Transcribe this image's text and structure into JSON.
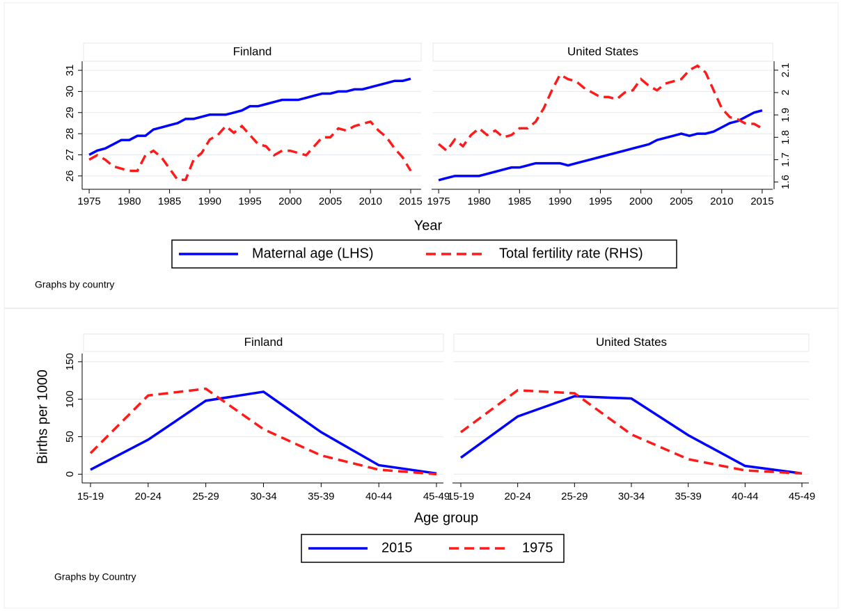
{
  "chart_data": [
    {
      "type": "line",
      "xlabel": "Year",
      "note": "Graphs by country",
      "panels": [
        "Finland",
        "United States"
      ],
      "x": [
        1975,
        1976,
        1977,
        1978,
        1979,
        1980,
        1981,
        1982,
        1983,
        1984,
        1985,
        1986,
        1987,
        1988,
        1989,
        1990,
        1991,
        1992,
        1993,
        1994,
        1995,
        1996,
        1997,
        1998,
        1999,
        2000,
        2001,
        2002,
        2003,
        2004,
        2005,
        2006,
        2007,
        2008,
        2009,
        2010,
        2011,
        2012,
        2013,
        2014,
        2015
      ],
      "xlim": [
        1974.3,
        2016.3
      ],
      "xticks": [
        1975,
        1980,
        1985,
        1990,
        1995,
        2000,
        2005,
        2010,
        2015
      ],
      "ylim": [
        25.5,
        31.43
      ],
      "yticks": [
        26,
        27,
        28,
        29,
        30,
        31
      ],
      "y2lim": [
        1.58,
        2.14
      ],
      "y2ticks": [
        1.6,
        1.7,
        1.8,
        1.9,
        2,
        2.1
      ],
      "grid": true,
      "series": [
        {
          "name": "Maternal age (LHS)",
          "color": "#0000ff",
          "dash": false,
          "values": [
            [
              27.0,
              27.2,
              27.3,
              27.5,
              27.7,
              27.7,
              27.9,
              27.9,
              28.2,
              28.3,
              28.4,
              28.5,
              28.7,
              28.7,
              28.8,
              28.9,
              28.9,
              28.9,
              29.0,
              29.1,
              29.3,
              29.3,
              29.4,
              29.5,
              29.6,
              29.6,
              29.6,
              29.7,
              29.8,
              29.9,
              29.9,
              30.0,
              30.0,
              30.1,
              30.1,
              30.2,
              30.3,
              30.4,
              30.5,
              30.5,
              30.6
            ],
            [
              25.8,
              25.9,
              26.0,
              26.0,
              26.0,
              26.0,
              26.1,
              26.2,
              26.3,
              26.4,
              26.4,
              26.5,
              26.6,
              26.6,
              26.6,
              26.6,
              26.5,
              26.6,
              26.7,
              26.8,
              26.9,
              27.0,
              27.1,
              27.2,
              27.3,
              27.4,
              27.5,
              27.7,
              27.8,
              27.9,
              28.0,
              27.9,
              28.0,
              28.0,
              28.1,
              28.3,
              28.5,
              28.6,
              28.8,
              29.0,
              29.1
            ]
          ]
        },
        {
          "name": "Total fertility rate (RHS)",
          "color": "#ff1a1a",
          "dash": true,
          "axis": "y2",
          "values": [
            [
              1.7,
              1.72,
              1.7,
              1.67,
              1.66,
              1.65,
              1.65,
              1.72,
              1.74,
              1.71,
              1.66,
              1.61,
              1.61,
              1.7,
              1.73,
              1.79,
              1.81,
              1.85,
              1.82,
              1.85,
              1.81,
              1.77,
              1.76,
              1.72,
              1.74,
              1.74,
              1.73,
              1.72,
              1.76,
              1.8,
              1.8,
              1.84,
              1.83,
              1.85,
              1.86,
              1.87,
              1.83,
              1.8,
              1.75,
              1.71,
              1.65
            ],
            [
              1.77,
              1.74,
              1.79,
              1.76,
              1.81,
              1.84,
              1.81,
              1.83,
              1.8,
              1.81,
              1.84,
              1.84,
              1.87,
              1.93,
              2.01,
              2.08,
              2.06,
              2.05,
              2.02,
              2.0,
              1.98,
              1.98,
              1.97,
              2.0,
              2.01,
              2.06,
              2.03,
              2.01,
              2.04,
              2.05,
              2.06,
              2.1,
              2.12,
              2.09,
              2.01,
              1.93,
              1.89,
              1.88,
              1.86,
              1.86,
              1.84
            ]
          ]
        }
      ]
    },
    {
      "type": "line",
      "xlabel": "Age group",
      "ylabel": "Births per 1000",
      "note": "Graphs by Country",
      "panels": [
        "Finland",
        "United States"
      ],
      "categories": [
        "15-19",
        "20-24",
        "25-29",
        "30-34",
        "35-39",
        "40-44",
        "45-49"
      ],
      "ylim": [
        -8,
        161
      ],
      "yticks": [
        0,
        50,
        100,
        150
      ],
      "grid": true,
      "series": [
        {
          "name": "2015",
          "color": "#0000ff",
          "dash": false,
          "values": [
            [
              6,
              46,
              98,
              110,
              56,
              12,
              1
            ],
            [
              22,
              77,
              104,
              101,
              52,
              11,
              1
            ]
          ]
        },
        {
          "name": "1975",
          "color": "#ff1a1a",
          "dash": true,
          "values": [
            [
              28,
              105,
              114,
              60,
              25,
              6,
              0
            ],
            [
              56,
              112,
              108,
              53,
              20,
              5,
              1
            ]
          ]
        }
      ]
    }
  ]
}
